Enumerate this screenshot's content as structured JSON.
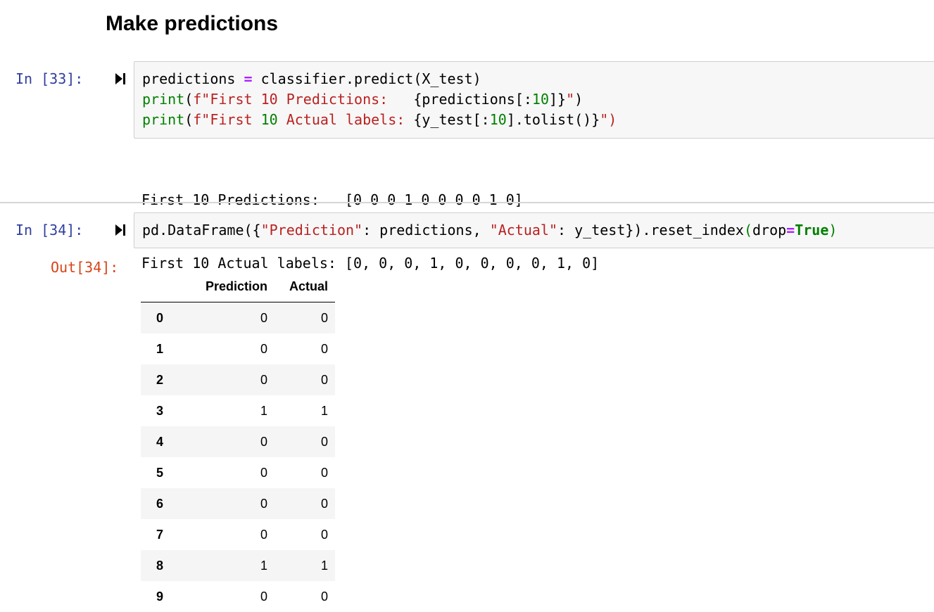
{
  "heading": "Make predictions",
  "cells": [
    {
      "in_prompt": "In [33]:",
      "code": [
        [
          {
            "t": "predictions ",
            "c": ""
          },
          {
            "t": "=",
            "c": "op"
          },
          {
            "t": " classifier.predict(X_test)",
            "c": ""
          }
        ],
        [
          {
            "t": "print",
            "c": "kw-builtin"
          },
          {
            "t": "(",
            "c": ""
          },
          {
            "t": "f\"First 10 Predictions:   ",
            "c": "str"
          },
          {
            "t": "{predictions[:",
            "c": ""
          },
          {
            "t": "10",
            "c": "num"
          },
          {
            "t": "]}",
            "c": ""
          },
          {
            "t": "\"",
            "c": "str"
          },
          {
            "t": ")",
            "c": ""
          }
        ],
        [
          {
            "t": "print",
            "c": "kw-builtin"
          },
          {
            "t": "(",
            "c": ""
          },
          {
            "t": "f\"First ",
            "c": "str"
          },
          {
            "t": "10",
            "c": "num"
          },
          {
            "t": " Actual labels: ",
            "c": "str"
          },
          {
            "t": "{y_test[:",
            "c": ""
          },
          {
            "t": "10",
            "c": "num"
          },
          {
            "t": "].tolist()}",
            "c": ""
          },
          {
            "t": "\")",
            "c": "str"
          }
        ]
      ],
      "output_lines": [
        "First 10 Predictions:   [0 0 0 1 0 0 0 0 1 0]",
        "First 10 Actual labels: [0, 0, 0, 1, 0, 0, 0, 0, 1, 0]"
      ]
    },
    {
      "in_prompt": "In [34]:",
      "out_prompt": "Out[34]:",
      "code": [
        [
          {
            "t": "pd.DataFrame({",
            "c": ""
          },
          {
            "t": "\"Prediction\"",
            "c": "str"
          },
          {
            "t": ": predictions, ",
            "c": ""
          },
          {
            "t": "\"Actual\"",
            "c": "str"
          },
          {
            "t": ": y_test}).reset_index",
            "c": ""
          },
          {
            "t": "(",
            "c": "kw-builtin"
          },
          {
            "t": "drop",
            "c": ""
          },
          {
            "t": "=",
            "c": "op"
          },
          {
            "t": "True",
            "c": "bool"
          },
          {
            "t": ")",
            "c": "kw-builtin"
          }
        ]
      ],
      "table": {
        "columns": [
          "",
          "Prediction",
          "Actual"
        ],
        "rows": [
          [
            "0",
            "0",
            "0"
          ],
          [
            "1",
            "0",
            "0"
          ],
          [
            "2",
            "0",
            "0"
          ],
          [
            "3",
            "1",
            "1"
          ],
          [
            "4",
            "0",
            "0"
          ],
          [
            "5",
            "0",
            "0"
          ],
          [
            "6",
            "0",
            "0"
          ],
          [
            "7",
            "0",
            "0"
          ],
          [
            "8",
            "1",
            "1"
          ],
          [
            "9",
            "0",
            "0"
          ]
        ]
      }
    }
  ],
  "icons": {
    "run": "run-cell-icon"
  }
}
